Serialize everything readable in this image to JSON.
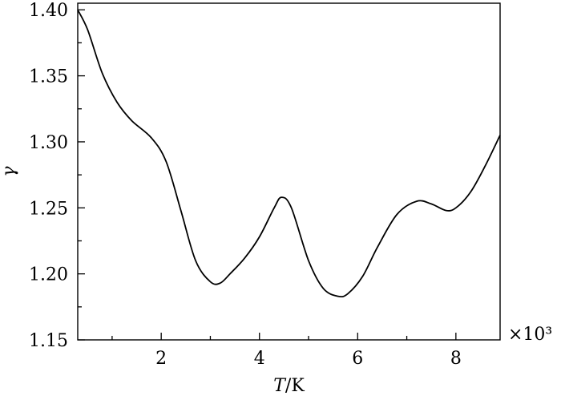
{
  "chart_data": {
    "type": "line",
    "title": "",
    "xlabel": "T/K",
    "ylabel": "γ",
    "x_multiplier_label": "×10³",
    "xlim": [
      0.3,
      8.9
    ],
    "ylim": [
      1.15,
      1.405
    ],
    "xticks": [
      2,
      4,
      6,
      8
    ],
    "xtick_labels": [
      "2",
      "4",
      "6",
      "8"
    ],
    "yticks": [
      1.15,
      1.2,
      1.25,
      1.3,
      1.35,
      1.4
    ],
    "ytick_labels": [
      "1.15",
      "1.20",
      "1.25",
      "1.30",
      "1.35",
      "1.40"
    ],
    "grid": false,
    "series": [
      {
        "x": [
          0.3,
          0.5,
          0.8,
          1.1,
          1.4,
          1.8,
          2.1,
          2.4,
          2.7,
          3.0,
          3.2,
          3.4,
          3.7,
          4.0,
          4.3,
          4.45,
          4.65,
          5.0,
          5.3,
          5.6,
          5.8,
          6.1,
          6.4,
          6.8,
          7.2,
          7.5,
          7.8,
          8.0,
          8.3,
          8.6,
          8.9
        ],
        "values": [
          1.4,
          1.385,
          1.352,
          1.33,
          1.316,
          1.303,
          1.285,
          1.248,
          1.21,
          1.194,
          1.193,
          1.2,
          1.212,
          1.228,
          1.25,
          1.258,
          1.25,
          1.21,
          1.189,
          1.183,
          1.185,
          1.198,
          1.22,
          1.245,
          1.255,
          1.253,
          1.248,
          1.25,
          1.262,
          1.282,
          1.305
        ]
      }
    ]
  }
}
